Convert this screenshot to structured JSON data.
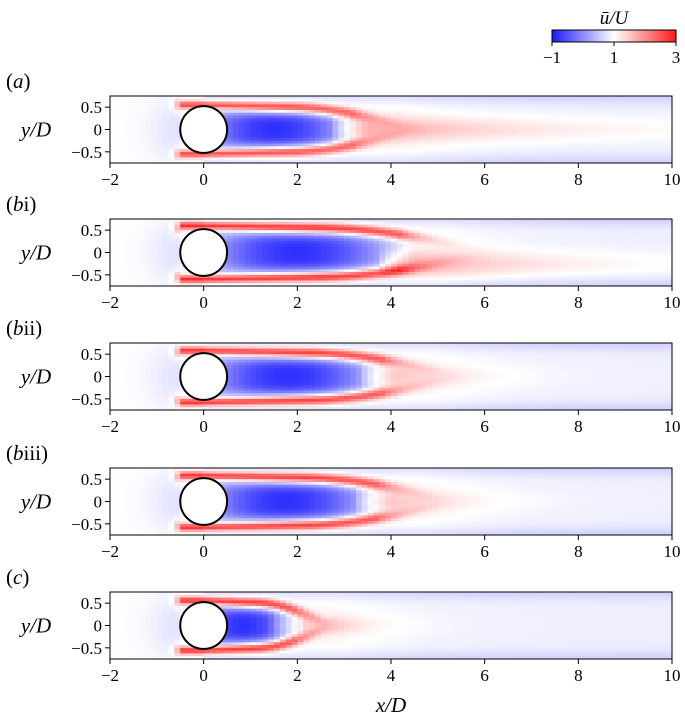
{
  "chart_data": {
    "type": "heatmap",
    "colorbar": {
      "title": "ū/U",
      "min": -1,
      "mid": 1,
      "max": 3,
      "tick_labels": [
        "−1",
        "1",
        "3"
      ],
      "colors": {
        "low": "#1a1aff",
        "mid": "#ffffff",
        "high": "#ff1a1a"
      }
    },
    "xlabel": "x/D",
    "ylabel": "y/D",
    "xlim": [
      -2,
      10
    ],
    "ylim": [
      -0.75,
      0.75
    ],
    "x_ticks": [
      -2,
      0,
      2,
      4,
      6,
      8,
      10
    ],
    "x_tick_labels": [
      "−2",
      "0",
      "2",
      "4",
      "6",
      "8",
      "10"
    ],
    "y_ticks": [
      0.5,
      0,
      -0.5
    ],
    "y_tick_labels": [
      "0.5",
      "0",
      "−0.5"
    ],
    "cylinder": {
      "center": [
        0,
        0
      ],
      "diameter": 1
    },
    "panels": [
      {
        "label_prefix": "(",
        "label_italic": "a",
        "label_roman": "",
        "label_suffix": ")",
        "recirculation_length": 3.2,
        "shear_layer_peak": 2.6,
        "shear_layer_center": 0.55,
        "tail_decay": 4.5,
        "tail_offset": 0.0
      },
      {
        "label_prefix": "(",
        "label_italic": "b",
        "label_roman": "i",
        "label_suffix": ")",
        "recirculation_length": 4.2,
        "shear_layer_peak": 2.9,
        "shear_layer_center": 0.6,
        "tail_decay": 3.5,
        "tail_offset": -0.25
      },
      {
        "label_prefix": "(",
        "label_italic": "b",
        "label_roman": "ii",
        "label_suffix": ")",
        "recirculation_length": 3.8,
        "shear_layer_peak": 2.8,
        "shear_layer_center": 0.58,
        "tail_decay": 1.5,
        "tail_offset": 0.0
      },
      {
        "label_prefix": "(",
        "label_italic": "b",
        "label_roman": "iii",
        "label_suffix": ")",
        "recirculation_length": 3.7,
        "shear_layer_peak": 2.8,
        "shear_layer_center": 0.58,
        "tail_decay": 1.5,
        "tail_offset": 0.0
      },
      {
        "label_prefix": "(",
        "label_italic": "c",
        "label_roman": "",
        "label_suffix": ")",
        "recirculation_length": 1.9,
        "shear_layer_peak": 2.8,
        "shear_layer_center": 0.56,
        "tail_decay": 1.2,
        "tail_offset": 0.0
      }
    ]
  }
}
